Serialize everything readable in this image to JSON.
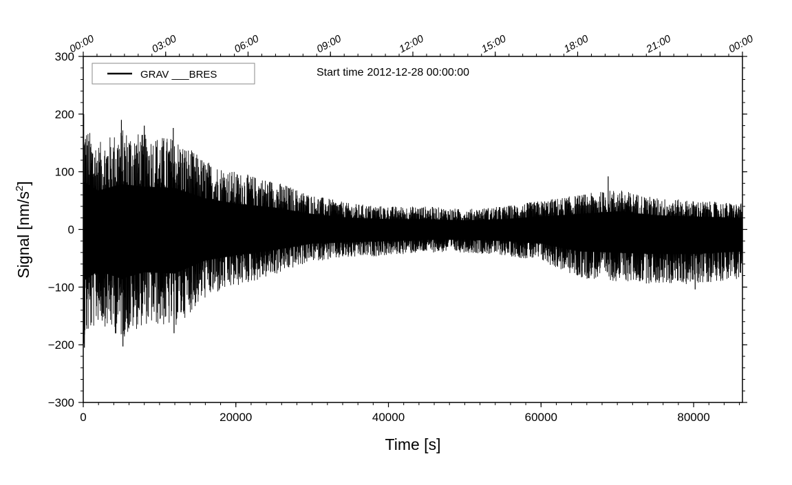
{
  "chart_data": {
    "type": "line",
    "title": "",
    "annotation_label": "Start time",
    "start_time": "2012-12-28 00:00:00",
    "xlabel": "Time [s]",
    "ylabel": "Signal [nm/s²]",
    "ylabel_parts": {
      "main": "Signal [nm/s",
      "sup": "2",
      "end": "]"
    },
    "xlim": [
      0,
      86400
    ],
    "ylim": [
      -300,
      300
    ],
    "x_ticks": [
      0,
      20000,
      40000,
      60000,
      80000
    ],
    "x_tick_labels": [
      "0",
      "20000",
      "40000",
      "60000",
      "80000"
    ],
    "y_ticks": [
      -300,
      -200,
      -100,
      0,
      100,
      200,
      300
    ],
    "y_tick_labels": [
      "−300",
      "−200",
      "−100",
      "0",
      "100",
      "200",
      "300"
    ],
    "top_axis": {
      "unit": "time of day",
      "ticks_seconds": [
        0,
        10800,
        21600,
        32400,
        43200,
        54000,
        64800,
        75600,
        86400
      ],
      "labels": [
        "00:00",
        "03:00",
        "06:00",
        "09:00",
        "12:00",
        "15:00",
        "18:00",
        "21:00",
        "00:00"
      ]
    },
    "legend": {
      "position": "top-left",
      "entries": [
        "GRAV ___BRES"
      ]
    },
    "grid": false,
    "series": [
      {
        "name": "GRAV ___BRES",
        "color": "#000000",
        "x": [
          0,
          2000,
          5000,
          8000,
          12000,
          16000,
          20000,
          25000,
          30000,
          35000,
          40000,
          45000,
          50000,
          55000,
          60000,
          65000,
          70000,
          75000,
          80000,
          86400
        ],
        "upper_envelope": [
          185,
          150,
          175,
          165,
          160,
          120,
          100,
          85,
          60,
          45,
          40,
          40,
          35,
          40,
          50,
          60,
          70,
          55,
          50,
          45
        ],
        "lower_envelope": [
          -200,
          -160,
          -190,
          -165,
          -170,
          -120,
          -100,
          -80,
          -55,
          -50,
          -45,
          -40,
          -40,
          -45,
          -55,
          -85,
          -90,
          -95,
          -95,
          -85
        ],
        "peaks": [
          {
            "x": 60,
            "y": 200
          },
          {
            "x": 150,
            "y": -205
          },
          {
            "x": 5000,
            "y": 190
          },
          {
            "x": 5200,
            "y": -203
          },
          {
            "x": 8000,
            "y": 180
          },
          {
            "x": 11800,
            "y": 176
          },
          {
            "x": 11900,
            "y": -180
          },
          {
            "x": 68800,
            "y": 92
          },
          {
            "x": 80200,
            "y": -104
          }
        ]
      }
    ]
  }
}
